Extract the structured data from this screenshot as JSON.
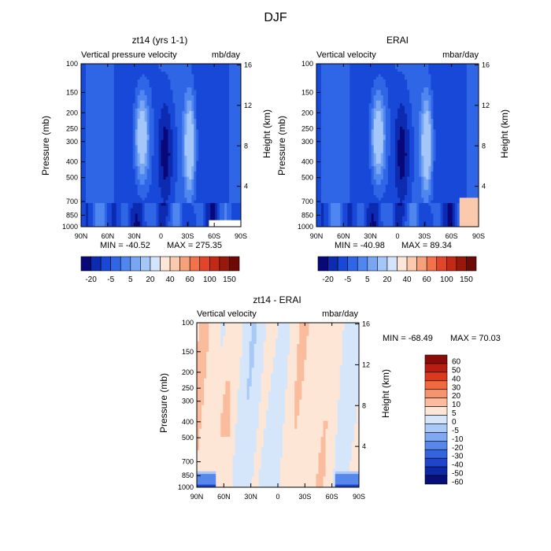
{
  "figure_title": "DJF",
  "chart_data": [
    {
      "type": "heatmap",
      "title": "zt14 (yrs 1-1)",
      "subtitle_left": "Vertical pressure velocity",
      "subtitle_right": "mb/day",
      "ylabel": "Pressure (mb)",
      "ylabel_right": "Height (km)",
      "x_ticks": [
        "90N",
        "60N",
        "30N",
        "0",
        "30S",
        "60S",
        "90S"
      ],
      "y_ticks": [
        "100",
        "150",
        "200",
        "250",
        "300",
        "400",
        "500",
        "700",
        "850",
        "1000"
      ],
      "y_ticks_right": [
        "16",
        "12",
        "8",
        "4"
      ],
      "min_label": "MIN = -40.52",
      "max_label": "MAX = 275.35",
      "colorbar_labels": [
        "-20",
        "-5",
        "5",
        "20",
        "40",
        "60",
        "100",
        "150"
      ]
    },
    {
      "type": "heatmap",
      "title": "ERAI",
      "subtitle_left": "Vertical velocity",
      "subtitle_right": "mbar/day",
      "ylabel": "Pressure (mb)",
      "ylabel_right": "Height (km)",
      "x_ticks": [
        "90N",
        "60N",
        "30N",
        "0",
        "30S",
        "60S",
        "90S"
      ],
      "y_ticks": [
        "100",
        "150",
        "200",
        "250",
        "300",
        "400",
        "500",
        "700",
        "850",
        "1000"
      ],
      "y_ticks_right": [
        "16",
        "12",
        "8",
        "4"
      ],
      "min_label": "MIN = -40.98",
      "max_label": "MAX = 89.34",
      "colorbar_labels": [
        "-20",
        "-5",
        "5",
        "20",
        "40",
        "60",
        "100",
        "150"
      ]
    },
    {
      "type": "heatmap",
      "title": "zt14 - ERAI",
      "subtitle_left": "Vertical velocity",
      "subtitle_right": "mbar/day",
      "ylabel": "Pressure (mb)",
      "ylabel_right": "Height (km)",
      "x_ticks": [
        "90N",
        "60N",
        "30N",
        "0",
        "30S",
        "60S",
        "90S"
      ],
      "y_ticks": [
        "100",
        "150",
        "200",
        "250",
        "300",
        "400",
        "500",
        "700",
        "850",
        "1000"
      ],
      "y_ticks_right": [
        "16",
        "12",
        "8",
        "4"
      ],
      "min_label": "MIN = -68.49",
      "max_label": "MAX =  70.03",
      "colorbar_labels": [
        "60",
        "50",
        "40",
        "30",
        "20",
        "10",
        "5",
        "0",
        "-5",
        "-10",
        "-20",
        "-30",
        "-40",
        "-50",
        "-60"
      ]
    }
  ],
  "colors": {
    "main_colorbar": [
      "#08087a",
      "#0c2bb0",
      "#1848d8",
      "#2f66e6",
      "#4f86ef",
      "#79a6f3",
      "#a5c6f8",
      "#d3e4fb",
      "#fde6d8",
      "#fbc9ad",
      "#f7a07c",
      "#f2724c",
      "#e3452a",
      "#c22a16",
      "#98180b",
      "#6e0a05"
    ],
    "diff_colorbar": [
      "#8a0b07",
      "#b71d10",
      "#dc3a1d",
      "#f06a40",
      "#f79470",
      "#fbbc9e",
      "#fde6d6",
      "#d5e6fb",
      "#a9c9f6",
      "#80a9f1",
      "#5787ea",
      "#3565de",
      "#1e45cc",
      "#0e29a6",
      "#07107a"
    ]
  }
}
